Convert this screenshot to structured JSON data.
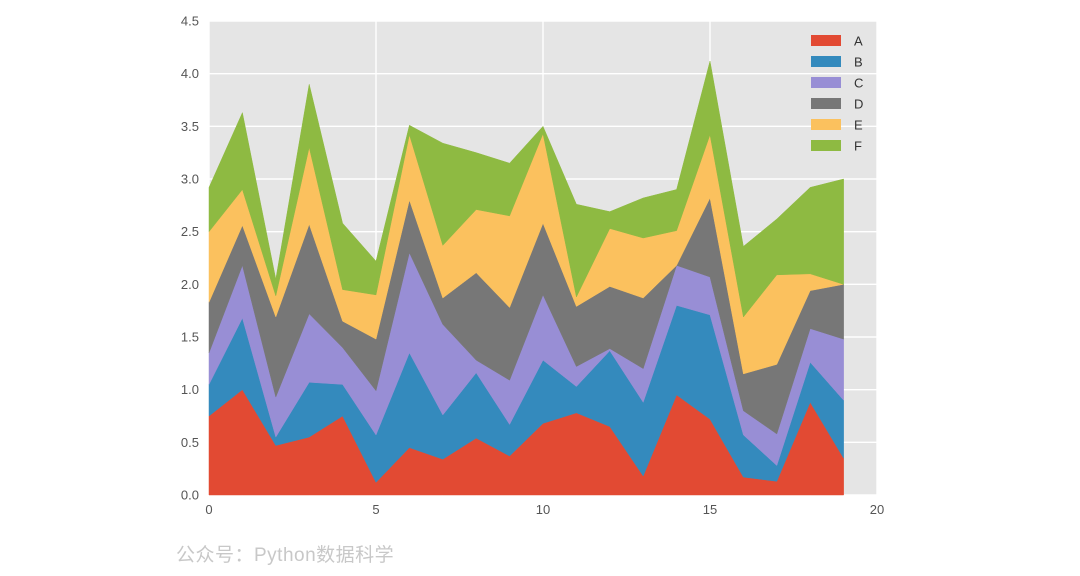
{
  "watermark": "公众号：Python数据科学",
  "chart_data": {
    "type": "area",
    "stacked": true,
    "title": "",
    "xlabel": "",
    "ylabel": "",
    "x": [
      0,
      1,
      2,
      3,
      4,
      5,
      6,
      7,
      8,
      9,
      10,
      11,
      12,
      13,
      14,
      15,
      16,
      17,
      18,
      19
    ],
    "xlim": [
      0,
      20
    ],
    "ylim": [
      0,
      4.5
    ],
    "xticks": [
      "0",
      "5",
      "10",
      "15",
      "20"
    ],
    "xtick_values": [
      0,
      5,
      10,
      15,
      20
    ],
    "yticks": [
      "0.0",
      "0.5",
      "1.0",
      "1.5",
      "2.0",
      "2.5",
      "3.0",
      "3.5",
      "4.0",
      "4.5"
    ],
    "ytick_values": [
      0,
      0.5,
      1.0,
      1.5,
      2.0,
      2.5,
      3.0,
      3.5,
      4.0,
      4.5
    ],
    "grid": true,
    "legend_position": "top-right",
    "series": [
      {
        "name": "A",
        "color": "#E24A33",
        "values": [
          0.75,
          1.0,
          0.47,
          0.55,
          0.75,
          0.12,
          0.45,
          0.34,
          0.54,
          0.37,
          0.68,
          0.78,
          0.65,
          0.18,
          0.95,
          0.72,
          0.17,
          0.13,
          0.88,
          0.35
        ]
      },
      {
        "name": "B",
        "color": "#348ABD",
        "values": [
          0.3,
          0.68,
          0.08,
          0.52,
          0.3,
          0.45,
          0.9,
          0.42,
          0.62,
          0.3,
          0.6,
          0.25,
          0.72,
          0.7,
          0.85,
          0.99,
          0.4,
          0.15,
          0.38,
          0.55
        ]
      },
      {
        "name": "C",
        "color": "#988ED5",
        "values": [
          0.3,
          0.5,
          0.38,
          0.65,
          0.35,
          0.42,
          0.95,
          0.86,
          0.12,
          0.42,
          0.62,
          0.19,
          0.02,
          0.32,
          0.38,
          0.36,
          0.23,
          0.3,
          0.32,
          0.58
        ]
      },
      {
        "name": "D",
        "color": "#777777",
        "values": [
          0.48,
          0.38,
          0.76,
          0.85,
          0.25,
          0.49,
          0.5,
          0.25,
          0.83,
          0.69,
          0.68,
          0.57,
          0.59,
          0.67,
          0.0,
          0.75,
          0.35,
          0.66,
          0.36,
          0.52
        ]
      },
      {
        "name": "E",
        "color": "#FBC15E",
        "values": [
          0.67,
          0.34,
          0.2,
          0.73,
          0.3,
          0.42,
          0.62,
          0.5,
          0.6,
          0.87,
          0.85,
          0.09,
          0.55,
          0.57,
          0.33,
          0.6,
          0.54,
          0.85,
          0.16,
          0.0
        ]
      },
      {
        "name": "F",
        "color": "#8EBA42",
        "values": [
          0.42,
          0.73,
          0.16,
          0.6,
          0.63,
          0.32,
          0.09,
          0.97,
          0.54,
          0.5,
          0.07,
          0.88,
          0.16,
          0.38,
          0.39,
          0.7,
          0.67,
          0.53,
          0.82,
          1.0
        ]
      }
    ]
  }
}
